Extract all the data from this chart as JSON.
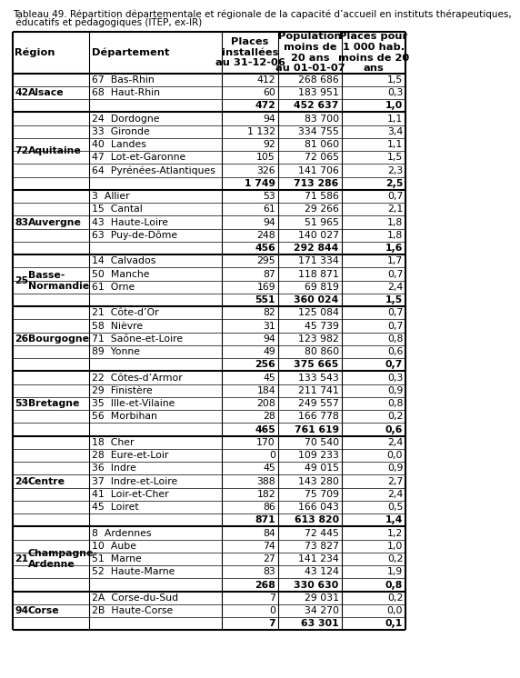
{
  "title1": "Tableau 49. Répartition départementale et régionale de la capacité d’accueil en instituts thérapeutiques,",
  "title2": " éducatifs et pédagogiques (ITEP, ex-IR)",
  "col_headers": [
    "Région",
    "Département",
    "Places\ninstallées\nau 31-12-06",
    "Population\nmoins de\n20 ans\nau 01-01-07",
    "Places pour\n1 000 hab.\nmoins de 20\nans"
  ],
  "rows": [
    {
      "region_num": "",
      "region_name": "",
      "dept": "67  Bas-Rhin",
      "places": "412",
      "pop": "268 686",
      "rate": "1,5",
      "bold": false,
      "group_end": false
    },
    {
      "region_num": "42",
      "region_name": "Alsace",
      "dept": "68  Haut-Rhin",
      "places": "60",
      "pop": "183 951",
      "rate": "0,3",
      "bold": false,
      "group_end": false
    },
    {
      "region_num": "42",
      "region_name": "Alsace",
      "dept": "",
      "places": "472",
      "pop": "452 637",
      "rate": "1,0",
      "bold": true,
      "group_end": true
    },
    {
      "region_num": "",
      "region_name": "",
      "dept": "24  Dordogne",
      "places": "94",
      "pop": "83 700",
      "rate": "1,1",
      "bold": false,
      "group_end": false
    },
    {
      "region_num": "",
      "region_name": "",
      "dept": "33  Gironde",
      "places": "1 132",
      "pop": "334 755",
      "rate": "3,4",
      "bold": false,
      "group_end": false
    },
    {
      "region_num": "",
      "region_name": "",
      "dept": "40  Landes",
      "places": "92",
      "pop": "81 060",
      "rate": "1,1",
      "bold": false,
      "group_end": false
    },
    {
      "region_num": "",
      "region_name": "",
      "dept": "47  Lot-et-Garonne",
      "places": "105",
      "pop": "72 065",
      "rate": "1,5",
      "bold": false,
      "group_end": false
    },
    {
      "region_num": "",
      "region_name": "",
      "dept": "64  Pyrénées-Atlantiques",
      "places": "326",
      "pop": "141 706",
      "rate": "2,3",
      "bold": false,
      "group_end": false
    },
    {
      "region_num": "72",
      "region_name": "Aquitaine",
      "dept": "",
      "places": "1 749",
      "pop": "713 286",
      "rate": "2,5",
      "bold": true,
      "group_end": true
    },
    {
      "region_num": "",
      "region_name": "",
      "dept": "3  Allier",
      "places": "53",
      "pop": "71 586",
      "rate": "0,7",
      "bold": false,
      "group_end": false
    },
    {
      "region_num": "",
      "region_name": "",
      "dept": "15  Cantal",
      "places": "61",
      "pop": "29 266",
      "rate": "2,1",
      "bold": false,
      "group_end": false
    },
    {
      "region_num": "",
      "region_name": "",
      "dept": "43  Haute-Loire",
      "places": "94",
      "pop": "51 965",
      "rate": "1,8",
      "bold": false,
      "group_end": false
    },
    {
      "region_num": "",
      "region_name": "",
      "dept": "63  Puy-de-Dôme",
      "places": "248",
      "pop": "140 027",
      "rate": "1,8",
      "bold": false,
      "group_end": false
    },
    {
      "region_num": "83",
      "region_name": "Auvergne",
      "dept": "",
      "places": "456",
      "pop": "292 844",
      "rate": "1,6",
      "bold": true,
      "group_end": true
    },
    {
      "region_num": "",
      "region_name": "",
      "dept": "14  Calvados",
      "places": "295",
      "pop": "171 334",
      "rate": "1,7",
      "bold": false,
      "group_end": false
    },
    {
      "region_num": "",
      "region_name": "",
      "dept": "50  Manche",
      "places": "87",
      "pop": "118 871",
      "rate": "0,7",
      "bold": false,
      "group_end": false
    },
    {
      "region_num": "",
      "region_name": "",
      "dept": "61  Orne",
      "places": "169",
      "pop": "69 819",
      "rate": "2,4",
      "bold": false,
      "group_end": false
    },
    {
      "region_num": "25",
      "region_name": "Basse-\nNormandie",
      "dept": "",
      "places": "551",
      "pop": "360 024",
      "rate": "1,5",
      "bold": true,
      "group_end": true
    },
    {
      "region_num": "",
      "region_name": "",
      "dept": "21  Côte-d’Or",
      "places": "82",
      "pop": "125 084",
      "rate": "0,7",
      "bold": false,
      "group_end": false
    },
    {
      "region_num": "",
      "region_name": "",
      "dept": "58  Nièvre",
      "places": "31",
      "pop": "45 739",
      "rate": "0,7",
      "bold": false,
      "group_end": false
    },
    {
      "region_num": "",
      "region_name": "",
      "dept": "71  Saône-et-Loire",
      "places": "94",
      "pop": "123 982",
      "rate": "0,8",
      "bold": false,
      "group_end": false
    },
    {
      "region_num": "",
      "region_name": "",
      "dept": "89  Yonne",
      "places": "49",
      "pop": "80 860",
      "rate": "0,6",
      "bold": false,
      "group_end": false
    },
    {
      "region_num": "26",
      "region_name": "Bourgogne",
      "dept": "",
      "places": "256",
      "pop": "375 665",
      "rate": "0,7",
      "bold": true,
      "group_end": true
    },
    {
      "region_num": "",
      "region_name": "",
      "dept": "22  Côtes-d’Armor",
      "places": "45",
      "pop": "133 543",
      "rate": "0,3",
      "bold": false,
      "group_end": false
    },
    {
      "region_num": "",
      "region_name": "",
      "dept": "29  Finistère",
      "places": "184",
      "pop": "211 741",
      "rate": "0,9",
      "bold": false,
      "group_end": false
    },
    {
      "region_num": "",
      "region_name": "",
      "dept": "35  Ille-et-Vilaine",
      "places": "208",
      "pop": "249 557",
      "rate": "0,8",
      "bold": false,
      "group_end": false
    },
    {
      "region_num": "",
      "region_name": "",
      "dept": "56  Morbihan",
      "places": "28",
      "pop": "166 778",
      "rate": "0,2",
      "bold": false,
      "group_end": false
    },
    {
      "region_num": "53",
      "region_name": "Bretagne",
      "dept": "",
      "places": "465",
      "pop": "761 619",
      "rate": "0,6",
      "bold": true,
      "group_end": true
    },
    {
      "region_num": "",
      "region_name": "",
      "dept": "18  Cher",
      "places": "170",
      "pop": "70 540",
      "rate": "2,4",
      "bold": false,
      "group_end": false
    },
    {
      "region_num": "",
      "region_name": "",
      "dept": "28  Eure-et-Loir",
      "places": "0",
      "pop": "109 233",
      "rate": "0,0",
      "bold": false,
      "group_end": false
    },
    {
      "region_num": "",
      "region_name": "",
      "dept": "36  Indre",
      "places": "45",
      "pop": "49 015",
      "rate": "0,9",
      "bold": false,
      "group_end": false
    },
    {
      "region_num": "",
      "region_name": "",
      "dept": "37  Indre-et-Loire",
      "places": "388",
      "pop": "143 280",
      "rate": "2,7",
      "bold": false,
      "group_end": false
    },
    {
      "region_num": "",
      "region_name": "",
      "dept": "41  Loir-et-Cher",
      "places": "182",
      "pop": "75 709",
      "rate": "2,4",
      "bold": false,
      "group_end": false
    },
    {
      "region_num": "",
      "region_name": "",
      "dept": "45  Loiret",
      "places": "86",
      "pop": "166 043",
      "rate": "0,5",
      "bold": false,
      "group_end": false
    },
    {
      "region_num": "24",
      "region_name": "Centre",
      "dept": "",
      "places": "871",
      "pop": "613 820",
      "rate": "1,4",
      "bold": true,
      "group_end": true
    },
    {
      "region_num": "",
      "region_name": "",
      "dept": "8  Ardennes",
      "places": "84",
      "pop": "72 445",
      "rate": "1,2",
      "bold": false,
      "group_end": false
    },
    {
      "region_num": "",
      "region_name": "",
      "dept": "10  Aube",
      "places": "74",
      "pop": "73 827",
      "rate": "1,0",
      "bold": false,
      "group_end": false
    },
    {
      "region_num": "",
      "region_name": "",
      "dept": "51  Marne",
      "places": "27",
      "pop": "141 234",
      "rate": "0,2",
      "bold": false,
      "group_end": false
    },
    {
      "region_num": "",
      "region_name": "",
      "dept": "52  Haute-Marne",
      "places": "83",
      "pop": "43 124",
      "rate": "1,9",
      "bold": false,
      "group_end": false
    },
    {
      "region_num": "21",
      "region_name": "Champagne-\nArdenne",
      "dept": "",
      "places": "268",
      "pop": "330 630",
      "rate": "0,8",
      "bold": true,
      "group_end": true
    },
    {
      "region_num": "",
      "region_name": "",
      "dept": "2A  Corse-du-Sud",
      "places": "7",
      "pop": "29 031",
      "rate": "0,2",
      "bold": false,
      "group_end": false
    },
    {
      "region_num": "",
      "region_name": "",
      "dept": "2B  Haute-Corse",
      "places": "0",
      "pop": "34 270",
      "rate": "0,0",
      "bold": false,
      "group_end": false
    },
    {
      "region_num": "94",
      "region_name": "Corse",
      "dept": "",
      "places": "7",
      "pop": "63 301",
      "rate": "0,1",
      "bold": true,
      "group_end": true
    }
  ],
  "bg_color": "#ffffff",
  "font_size": 7.8,
  "header_font_size": 8.2,
  "title_font_size": 7.5
}
